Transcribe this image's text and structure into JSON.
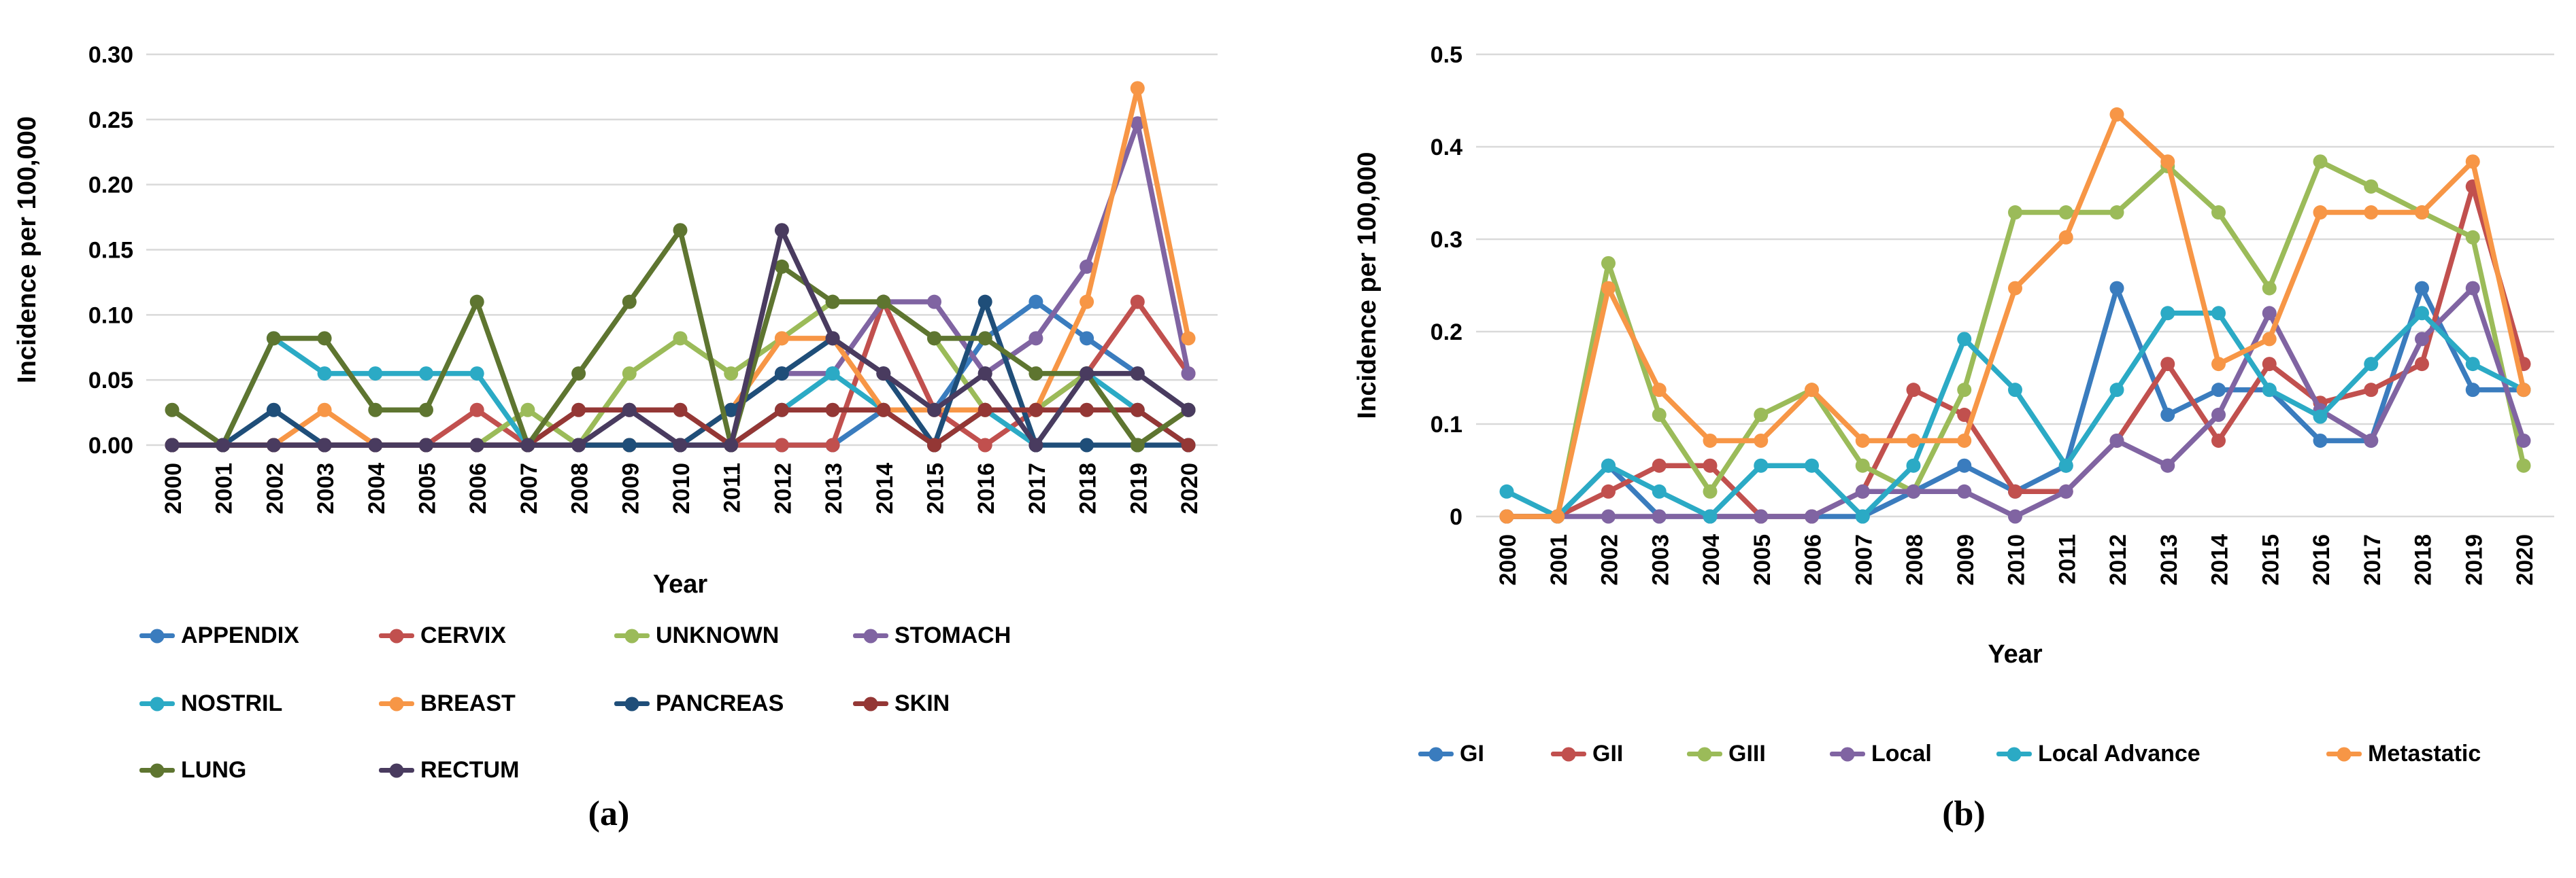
{
  "figure": {
    "background": "#FFFFFF",
    "grid_color": "#D9D9D9",
    "text_color": "#000000"
  },
  "captions": {
    "a": "(a)",
    "b": "(b)"
  },
  "chart_data": [
    {
      "id": "a",
      "type": "line",
      "title": "",
      "xlabel": "Year",
      "ylabel": "Incidence per 100,000",
      "x": [
        2000,
        2001,
        2002,
        2003,
        2004,
        2005,
        2006,
        2007,
        2008,
        2009,
        2010,
        2011,
        2012,
        2013,
        2014,
        2015,
        2016,
        2017,
        2018,
        2019,
        2020
      ],
      "ylim": [
        0,
        0.3
      ],
      "yticks": [
        0.0,
        0.05,
        0.1,
        0.15,
        0.2,
        0.25,
        0.3
      ],
      "ytick_labels": [
        "0.00",
        "0.05",
        "0.10",
        "0.15",
        "0.20",
        "0.25",
        "0.30"
      ],
      "grid": true,
      "legend_position": "bottom-left, 3 rows",
      "series": [
        {
          "name": "APPENDIX",
          "color": "#3A7CBE",
          "values": [
            0,
            0,
            0,
            0,
            0,
            0,
            0,
            0,
            0,
            0,
            0,
            0,
            0,
            0,
            0.027,
            0.027,
            0.082,
            0.11,
            0.082,
            0.055,
            0.027
          ]
        },
        {
          "name": "CERVIX",
          "color": "#C1504E",
          "values": [
            0,
            0,
            0,
            0,
            0,
            0,
            0.027,
            0,
            0,
            0,
            0,
            0,
            0,
            0,
            0.11,
            0.027,
            0,
            0.027,
            0.055,
            0.11,
            0.055
          ]
        },
        {
          "name": "UNKNOWN",
          "color": "#9BBB59",
          "values": [
            0,
            0,
            0,
            0,
            0,
            0,
            0,
            0.027,
            0,
            0.055,
            0.082,
            0.055,
            0.082,
            0.11,
            0.11,
            0.082,
            0.027,
            0.027,
            0.055,
            0,
            0.027
          ]
        },
        {
          "name": "STOMACH",
          "color": "#8064A2",
          "values": [
            0,
            0,
            0,
            0,
            0,
            0,
            0,
            0,
            0,
            0,
            0,
            0.027,
            0.055,
            0.055,
            0.11,
            0.11,
            0.055,
            0.082,
            0.137,
            0.247,
            0.055
          ]
        },
        {
          "name": "NOSTRIL",
          "color": "#2BAAC5",
          "values": [
            0,
            0,
            0.082,
            0.055,
            0.055,
            0.055,
            0.055,
            0,
            0,
            0,
            0,
            0,
            0.027,
            0.055,
            0.027,
            0,
            0.027,
            0,
            0.055,
            0.027,
            0
          ]
        },
        {
          "name": "BREAST",
          "color": "#F79646",
          "values": [
            0,
            0,
            0,
            0.027,
            0,
            0,
            0,
            0,
            0,
            0,
            0,
            0.027,
            0.082,
            0.082,
            0.027,
            0.027,
            0.027,
            0.027,
            0.11,
            0.274,
            0.082
          ]
        },
        {
          "name": "PANCREAS",
          "color": "#1F4E79",
          "values": [
            0,
            0,
            0.027,
            0,
            0,
            0,
            0,
            0,
            0,
            0,
            0,
            0.027,
            0.055,
            0.082,
            0.055,
            0,
            0.11,
            0,
            0,
            0,
            0
          ]
        },
        {
          "name": "SKIN",
          "color": "#943735",
          "values": [
            0,
            0,
            0,
            0,
            0,
            0,
            0,
            0,
            0.027,
            0.027,
            0.027,
            0,
            0.027,
            0.027,
            0.027,
            0,
            0.027,
            0.027,
            0.027,
            0.027,
            0
          ]
        },
        {
          "name": "LUNG",
          "color": "#5E7530",
          "values": [
            0.027,
            0,
            0.082,
            0.082,
            0.027,
            0.027,
            0.11,
            0,
            0.055,
            0.11,
            0.165,
            0,
            0.137,
            0.11,
            0.11,
            0.082,
            0.082,
            0.055,
            0.055,
            0,
            0.027
          ]
        },
        {
          "name": "RECTUM",
          "color": "#493B5F",
          "values": [
            0,
            0,
            0,
            0,
            0,
            0,
            0,
            0,
            0,
            0.027,
            0,
            0,
            0.165,
            0.082,
            0.055,
            0.027,
            0.055,
            0,
            0.055,
            0.055,
            0.027
          ]
        }
      ]
    },
    {
      "id": "b",
      "type": "line",
      "title": "",
      "xlabel": "Year",
      "ylabel": "Incidence per 100,000",
      "x": [
        2000,
        2001,
        2002,
        2003,
        2004,
        2005,
        2006,
        2007,
        2008,
        2009,
        2010,
        2011,
        2012,
        2013,
        2014,
        2015,
        2016,
        2017,
        2018,
        2019,
        2020
      ],
      "ylim": [
        0,
        0.5
      ],
      "yticks": [
        0,
        0.1,
        0.2,
        0.3,
        0.4,
        0.5
      ],
      "ytick_labels": [
        "0",
        "0.1",
        "0.2",
        "0.3",
        "0.4",
        "0.5"
      ],
      "grid": true,
      "legend_position": "bottom, 1 row",
      "series": [
        {
          "name": "GI",
          "color": "#3A7CBE",
          "values": [
            0,
            0,
            0.055,
            0,
            0,
            0,
            0,
            0,
            0.027,
            0.055,
            0.027,
            0.055,
            0.247,
            0.11,
            0.137,
            0.137,
            0.082,
            0.082,
            0.247,
            0.137,
            0.137
          ]
        },
        {
          "name": "GII",
          "color": "#C1504E",
          "values": [
            0,
            0,
            0.027,
            0.055,
            0.055,
            0,
            0,
            0.027,
            0.137,
            0.11,
            0.027,
            0.027,
            0.082,
            0.165,
            0.082,
            0.165,
            0.123,
            0.137,
            0.165,
            0.357,
            0.165
          ]
        },
        {
          "name": "GIII",
          "color": "#9BBB59",
          "values": [
            0,
            0,
            0.274,
            0.11,
            0.027,
            0.11,
            0.137,
            0.055,
            0.027,
            0.137,
            0.329,
            0.329,
            0.329,
            0.379,
            0.329,
            0.247,
            0.384,
            0.357,
            0.329,
            0.302,
            0.055
          ]
        },
        {
          "name": "Local",
          "color": "#8064A2",
          "values": [
            0,
            0,
            0,
            0,
            0,
            0,
            0,
            0.027,
            0.027,
            0.027,
            0,
            0.027,
            0.082,
            0.055,
            0.11,
            0.22,
            0.115,
            0.082,
            0.192,
            0.247,
            0.082
          ]
        },
        {
          "name": "Local Advance",
          "color": "#2BAAC5",
          "values": [
            0.027,
            0,
            0.055,
            0.027,
            0,
            0.055,
            0.055,
            0,
            0.055,
            0.192,
            0.137,
            0.055,
            0.137,
            0.22,
            0.22,
            0.137,
            0.108,
            0.165,
            0.22,
            0.165,
            0.137
          ]
        },
        {
          "name": "Metastatic",
          "color": "#F79646",
          "values": [
            0,
            0,
            0.247,
            0.137,
            0.082,
            0.082,
            0.137,
            0.082,
            0.082,
            0.082,
            0.247,
            0.302,
            0.435,
            0.384,
            0.165,
            0.192,
            0.329,
            0.329,
            0.329,
            0.384,
            0.137
          ]
        }
      ]
    }
  ]
}
